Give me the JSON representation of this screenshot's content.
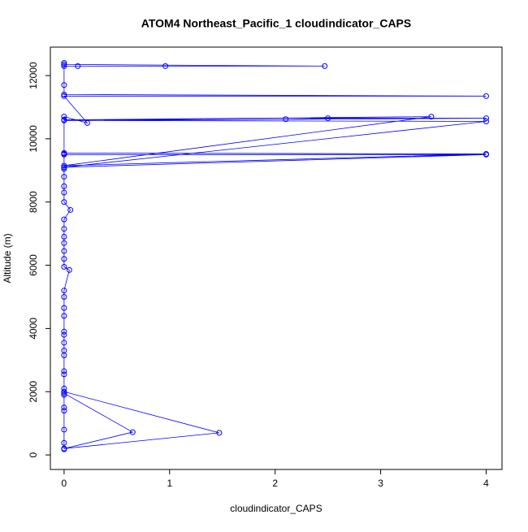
{
  "chart_data": {
    "type": "line",
    "title": "ATOM4 Northeast_Pacific_1 cloudindicator_CAPS",
    "x_label": "cloudindicator_CAPS",
    "y_label": "Altitude (m)",
    "xlim": [
      -0.13,
      4.15
    ],
    "ylim": [
      -460,
      12900
    ],
    "xticks": [
      0,
      1,
      2,
      3,
      4
    ],
    "yticks": [
      0,
      2000,
      4000,
      6000,
      8000,
      10000,
      12000
    ],
    "series": [
      {
        "name": "cloudindicator_CAPS",
        "color": "#0000ff",
        "x": [
          0,
          0,
          0.65,
          0,
          0,
          1.47,
          0,
          0,
          0,
          0,
          0,
          0,
          0,
          0,
          0,
          0,
          0,
          0,
          0,
          0,
          0,
          0,
          0,
          0,
          0.05,
          0,
          0,
          0,
          0,
          0,
          0,
          0,
          0.06,
          0,
          0,
          0,
          0,
          0,
          0,
          4,
          0,
          0,
          4,
          0,
          3.48,
          0,
          2.1,
          2.5,
          4,
          0,
          4,
          0,
          0,
          0,
          0.22,
          0,
          4,
          0,
          0,
          0,
          0.13,
          0.96,
          2.47,
          0,
          0
        ],
        "values": [
          180,
          200,
          720,
          1950,
          2000,
          700,
          200,
          380,
          800,
          1400,
          1500,
          1900,
          2100,
          2550,
          2650,
          3150,
          3300,
          3550,
          3800,
          3900,
          4400,
          4650,
          5000,
          5200,
          5850,
          5950,
          6200,
          6450,
          6700,
          6900,
          7150,
          7450,
          7750,
          8000,
          8300,
          8500,
          8800,
          9050,
          9100,
          9500,
          9500,
          9550,
          9520,
          9150,
          10700,
          10600,
          10620,
          10650,
          10650,
          10580,
          10550,
          9100,
          9520,
          10700,
          10500,
          11350,
          11350,
          11400,
          11700,
          12300,
          12300,
          12300,
          12300,
          12350,
          12400
        ]
      }
    ]
  }
}
